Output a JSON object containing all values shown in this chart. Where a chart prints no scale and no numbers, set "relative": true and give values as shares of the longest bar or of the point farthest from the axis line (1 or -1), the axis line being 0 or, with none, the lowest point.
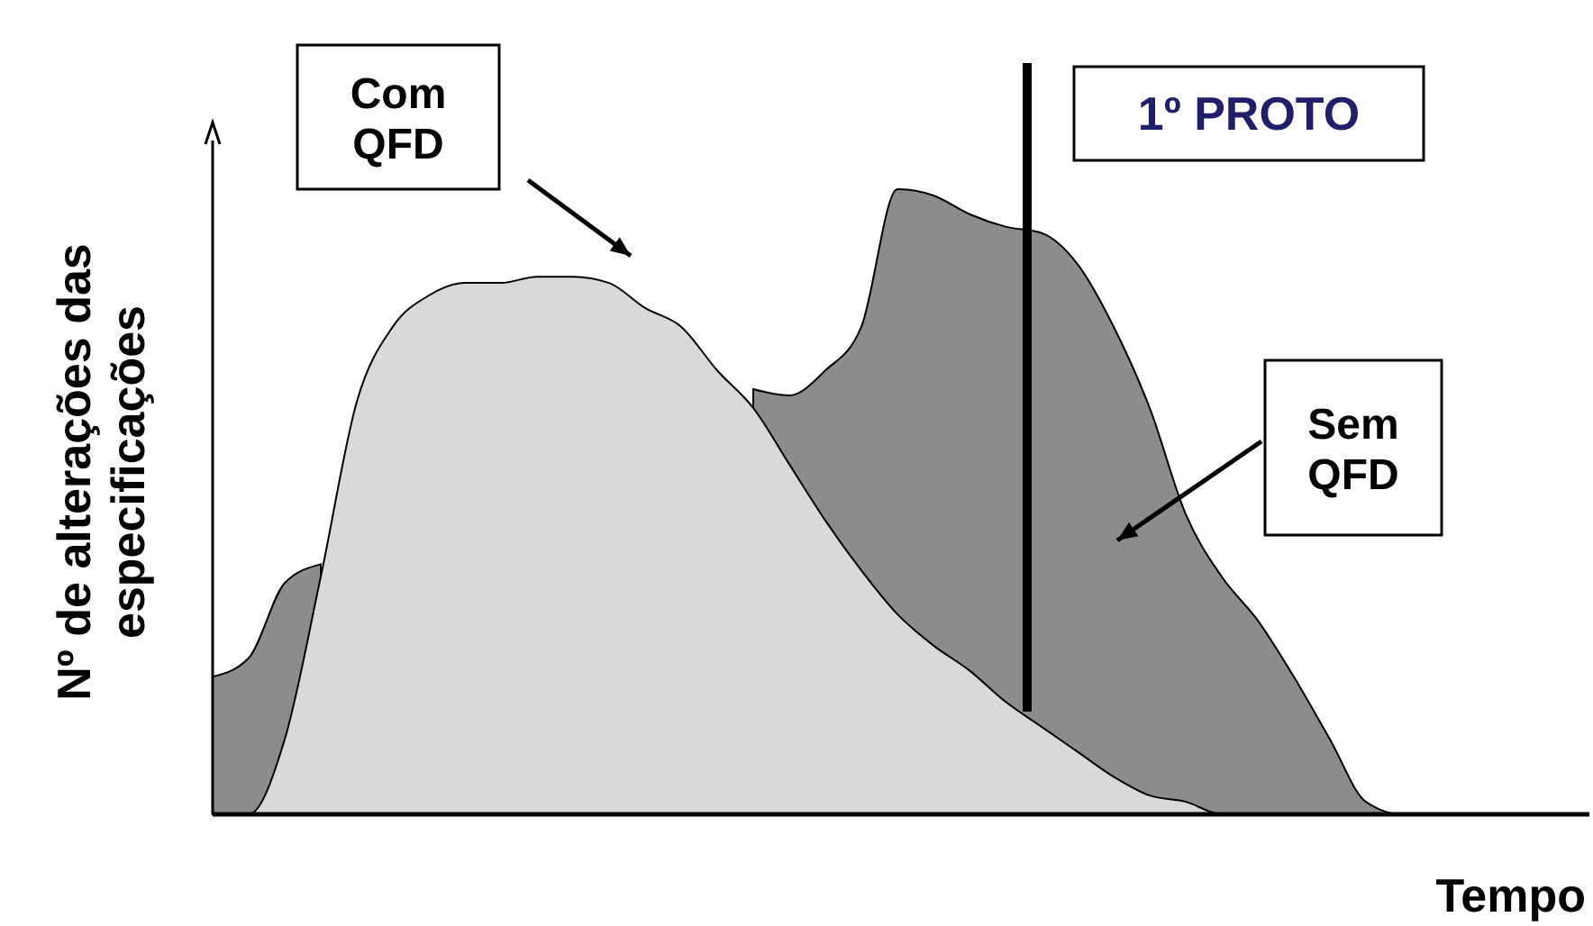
{
  "chart_data": {
    "type": "area",
    "relative": true,
    "ylabel": "Nº de alterações das especificações",
    "xlabel": "Tempo",
    "categories": [
      null,
      null,
      null,
      null,
      null,
      null,
      null,
      null,
      null,
      null,
      null,
      null,
      null,
      null,
      null,
      null,
      null,
      null,
      null,
      null,
      null,
      null,
      null,
      null,
      null,
      null,
      null,
      null,
      null,
      null,
      null,
      null,
      null,
      null,
      null,
      null,
      null,
      null,
      null
    ],
    "series": [
      {
        "color": "#8c8c8c",
        "values": [
          0.22,
          0.25,
          0.37,
          0.4,
          null,
          null,
          null,
          null,
          null,
          null,
          null,
          null,
          null,
          null,
          null,
          0.68,
          0.67,
          0.71,
          0.78,
          1.0,
          0.99,
          0.96,
          0.94,
          0.93,
          0.88,
          0.78,
          0.65,
          0.48,
          0.38,
          0.31,
          0.22,
          0.12,
          0.02,
          0,
          0,
          0,
          0,
          0,
          0
        ]
      },
      {
        "color": "#d9d9d9",
        "values": [
          0,
          0,
          0.12,
          0.38,
          0.66,
          0.78,
          0.83,
          0.85,
          0.85,
          0.86,
          0.86,
          0.85,
          0.81,
          0.78,
          0.71,
          0.65,
          0.56,
          0.47,
          0.39,
          0.32,
          0.27,
          0.23,
          0.18,
          0.14,
          0.1,
          0.06,
          0.03,
          0.02,
          0,
          0,
          0,
          0,
          0,
          0,
          0,
          0,
          0,
          0,
          0
        ]
      }
    ],
    "annotations": [
      "Com QFD",
      "Sem QFD",
      "1º PROTO"
    ]
  }
}
